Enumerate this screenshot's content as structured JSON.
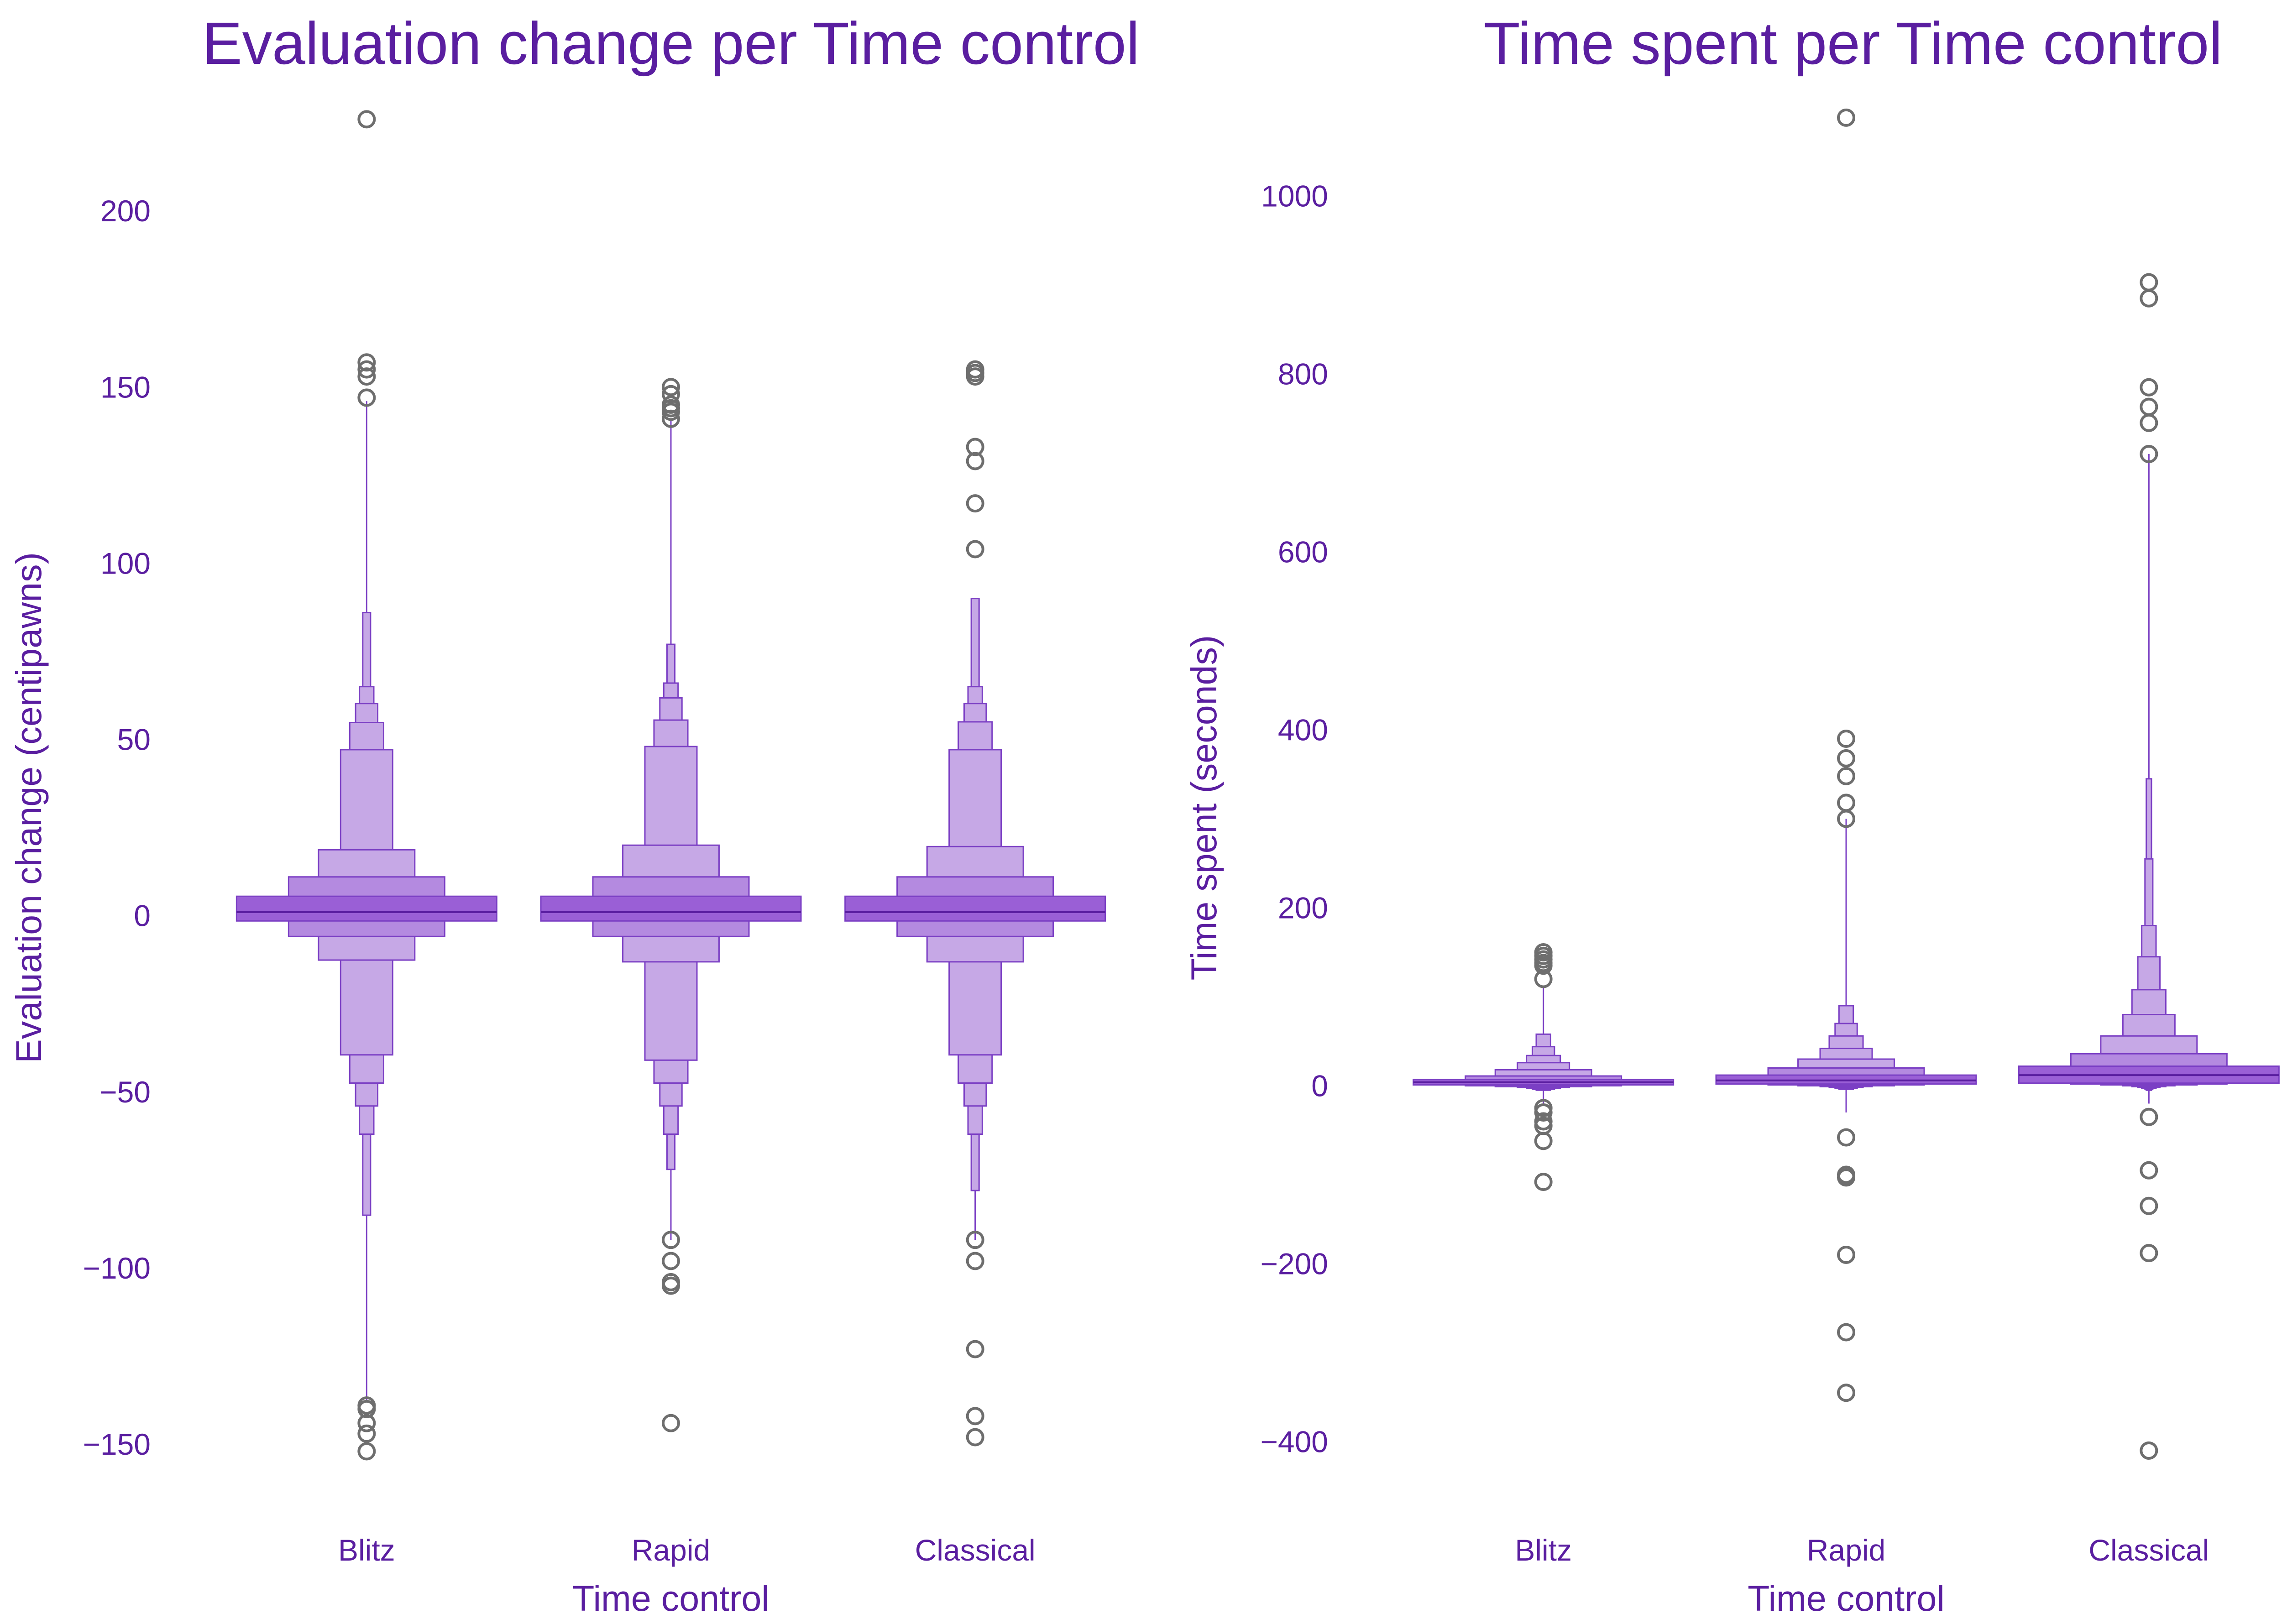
{
  "colors": {
    "text": "#5a1ea0",
    "box_edge": "#7b3fc4",
    "box_fill": "#c6a8e6",
    "box_dark": "#9a5fd6",
    "outlier": "#6e6e6e"
  },
  "chart_data": [
    {
      "type": "boxen",
      "title": "Evaluation change per Time control",
      "xlabel": "Time control",
      "ylabel": "Evaluation change (centipawns)",
      "ylim": [
        -172,
        232
      ],
      "yticks": [
        -150,
        -100,
        -50,
        0,
        50,
        100,
        150,
        200
      ],
      "ytick_labels": [
        "−150",
        "−100",
        "−50",
        "0",
        "50",
        "100",
        "150",
        "200"
      ],
      "categories": [
        "Blitz",
        "Rapid",
        "Classical"
      ],
      "grid": false,
      "legend": "none",
      "series": [
        {
          "category": "Blitz",
          "median": 1,
          "boxes": [
            [
              -1.5,
              5.5
            ],
            [
              -5.9,
              11
            ],
            [
              -12.6,
              18.7
            ],
            [
              -39.5,
              47.1
            ],
            [
              -47.5,
              54.8
            ],
            [
              -54,
              60.2
            ],
            [
              -62,
              65
            ],
            [
              -85,
              86
            ]
          ],
          "whiskers": [
            -138,
            146
          ],
          "outliers": [
            226,
            157,
            155,
            153,
            147,
            -139,
            -140,
            -144,
            -147,
            -152
          ]
        },
        {
          "category": "Rapid",
          "median": 1,
          "boxes": [
            [
              -1.5,
              5.5
            ],
            [
              -5.9,
              11
            ],
            [
              -13.1,
              20
            ],
            [
              -41,
              48
            ],
            [
              -47.5,
              55.5
            ],
            [
              -54,
              61.8
            ],
            [
              -62,
              66
            ],
            [
              -72,
              77
            ]
          ],
          "whiskers": [
            -92,
            141
          ],
          "outliers": [
            150,
            148,
            145,
            144,
            143,
            141,
            -92,
            -98,
            -104,
            -105,
            -144
          ]
        },
        {
          "category": "Classical",
          "median": 1,
          "boxes": [
            [
              -1.5,
              5.5
            ],
            [
              -5.9,
              11
            ],
            [
              -13.1,
              19.6
            ],
            [
              -39.5,
              47.1
            ],
            [
              -47.5,
              55
            ],
            [
              -54,
              60.2
            ],
            [
              -62,
              65
            ],
            [
              -78,
              90
            ]
          ],
          "whiskers": [
            -92,
            90
          ],
          "outliers": [
            155,
            154,
            153,
            133,
            129,
            117,
            104,
            -92,
            -98,
            -123,
            -142,
            -148
          ]
        }
      ]
    },
    {
      "type": "boxen",
      "title": "Time spent per Time control",
      "xlabel": "Time control",
      "ylabel": "Time spent (seconds)",
      "ylim": [
        -490,
        1110
      ],
      "yticks": [
        -400,
        -200,
        0,
        200,
        400,
        600,
        800,
        1000
      ],
      "ytick_labels": [
        "−400",
        "−200",
        "0",
        "200",
        "400",
        "600",
        "800",
        "1000"
      ],
      "categories": [
        "Blitz",
        "Rapid",
        "Classical"
      ],
      "grid": false,
      "legend": "none",
      "series": [
        {
          "category": "Blitz",
          "median": 4,
          "boxes": [
            [
              1,
              7
            ],
            [
              0,
              11
            ],
            [
              -1,
              18
            ],
            [
              -2,
              26
            ],
            [
              -3,
              34
            ],
            [
              -4,
              44
            ],
            [
              -5,
              58
            ]
          ],
          "whiskers": [
            -20,
            110
          ],
          "outliers": [
            150,
            146,
            142,
            138,
            135,
            120,
            -25,
            -30,
            -40,
            -45,
            -62,
            -108
          ]
        },
        {
          "category": "Rapid",
          "median": 6,
          "boxes": [
            [
              2,
              12
            ],
            [
              1,
              20
            ],
            [
              0,
              30
            ],
            [
              -1,
              42
            ],
            [
              -2,
              56
            ],
            [
              -3,
              70
            ],
            [
              -4,
              90
            ]
          ],
          "whiskers": [
            -30,
            300
          ],
          "outliers": [
            1088,
            390,
            368,
            348,
            318,
            300,
            -58,
            -100,
            -103,
            -190,
            -277,
            -345
          ]
        },
        {
          "category": "Classical",
          "median": 12,
          "boxes": [
            [
              3,
              22
            ],
            [
              2,
              36
            ],
            [
              1,
              56
            ],
            [
              0,
              80
            ],
            [
              -1,
              108
            ],
            [
              -2,
              145
            ],
            [
              -3,
              180
            ],
            [
              -4,
              255
            ],
            [
              -5,
              345
            ]
          ],
          "whiskers": [
            -20,
            710
          ],
          "outliers": [
            903,
            885,
            785,
            763,
            745,
            710,
            -35,
            -95,
            -135,
            -188,
            -410
          ]
        }
      ]
    }
  ]
}
